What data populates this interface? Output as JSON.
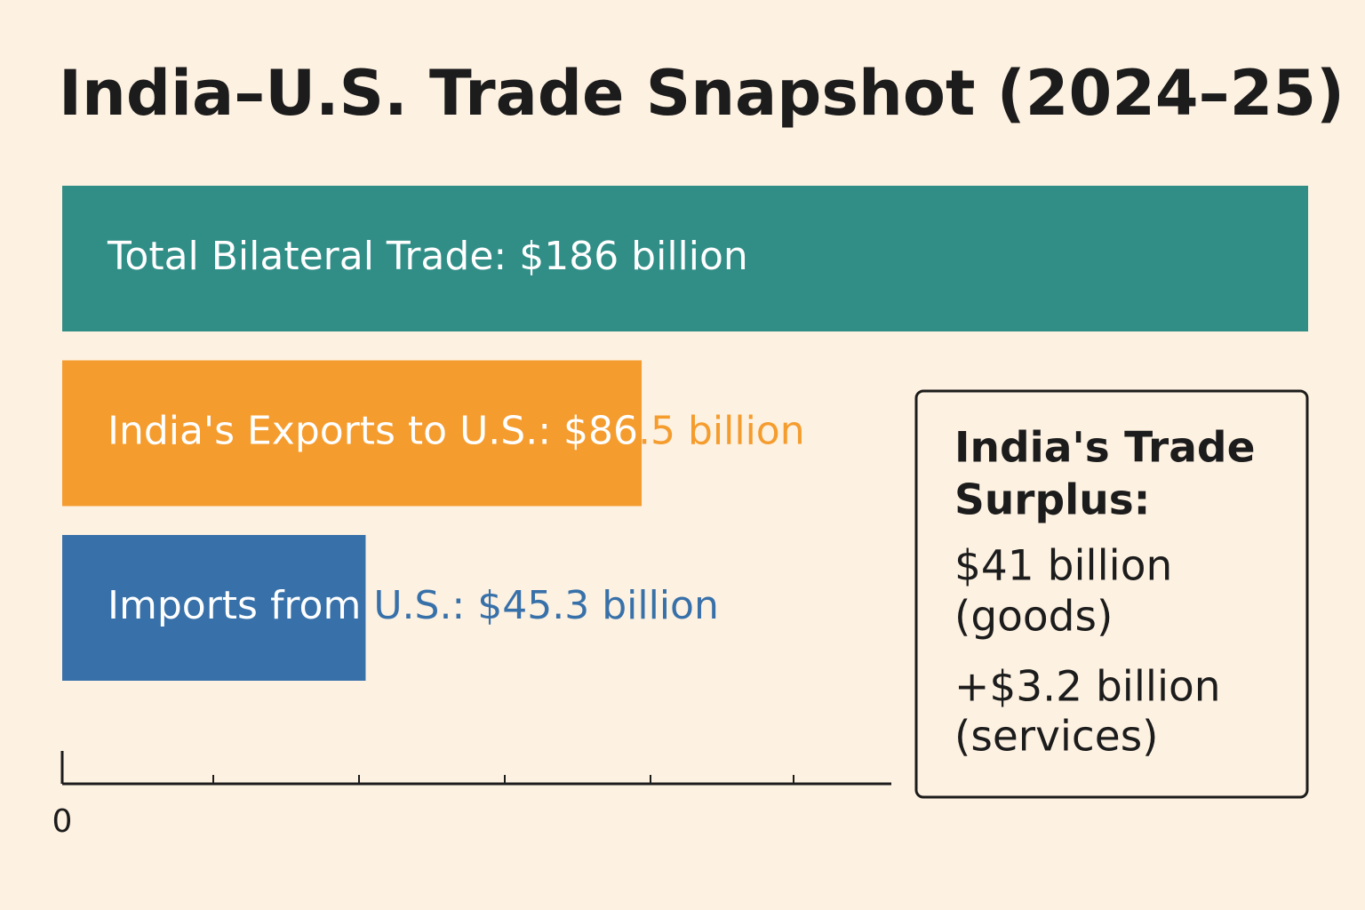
{
  "chart_data": {
    "type": "bar",
    "orientation": "horizontal",
    "title": "India–U.S. Trade Snapshot (2024–25)",
    "categories": [
      "Total Bilateral Trade:",
      "India's Exports to U.S.:",
      "Imports from U.S.:"
    ],
    "values": [
      186,
      86.5,
      45.3
    ],
    "value_labels": [
      "$186 billion",
      "$86.5 billion",
      "$45.3 billion"
    ],
    "colors": [
      "#318e87",
      "#f59c2e",
      "#3871a9"
    ],
    "xlim": [
      0,
      186
    ],
    "xticks": [
      0
    ],
    "annotation": {
      "lines": [
        "India's Trade",
        "Surplus:",
        "$41 billion",
        "(goods)",
        "+$3.2 billion",
        "(services)"
      ]
    }
  }
}
